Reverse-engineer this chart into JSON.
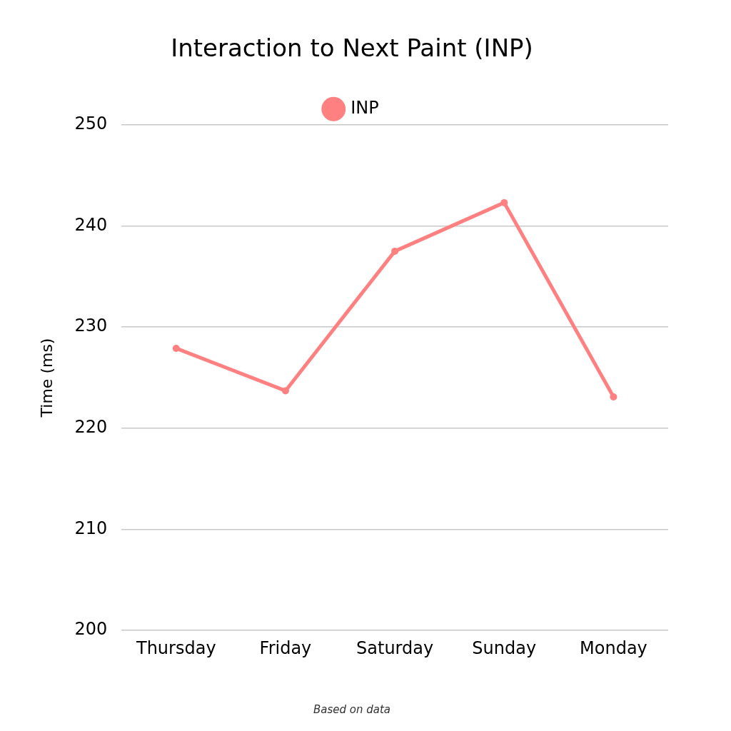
{
  "chart_data": {
    "type": "line",
    "title": "Interaction to Next Paint (INP)",
    "ylabel": "Time (ms)",
    "categories": [
      "Thursday",
      "Friday",
      "Saturday",
      "Sunday",
      "Monday"
    ],
    "series": [
      {
        "name": "INP",
        "color": "#ff8080",
        "values": [
          227.9,
          223.7,
          237.5,
          242.3,
          223.1
        ]
      }
    ],
    "ylim": [
      200,
      250
    ],
    "yticks": [
      200,
      210,
      220,
      230,
      240,
      250
    ],
    "grid": "y",
    "legend": "top",
    "marker": "circle",
    "annotations": [
      "Based on data"
    ]
  }
}
